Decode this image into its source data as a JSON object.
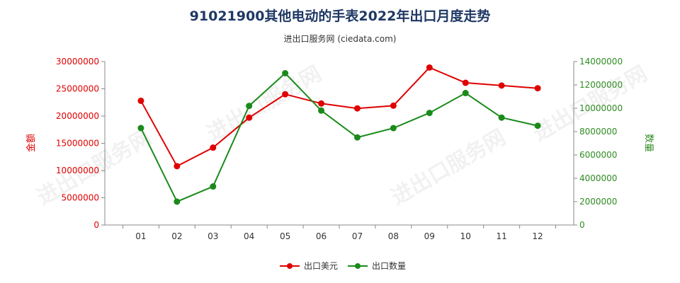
{
  "chart_data": {
    "type": "line",
    "title": "91021900其他电动的手表2022年出口月度走势",
    "subtitle": "进出口服务网 (ciedata.com)",
    "categories": [
      "01",
      "02",
      "03",
      "04",
      "05",
      "06",
      "07",
      "08",
      "09",
      "10",
      "11",
      "12"
    ],
    "y_left": {
      "label": "金额",
      "range": [
        0,
        30000000
      ],
      "ticks": [
        0,
        5000000,
        10000000,
        15000000,
        20000000,
        25000000,
        30000000
      ],
      "color": "#e00000"
    },
    "y_right": {
      "label": "数量",
      "range": [
        0,
        14000000
      ],
      "ticks": [
        0,
        2000000,
        4000000,
        6000000,
        8000000,
        10000000,
        12000000,
        14000000
      ],
      "color": "#2e8b22"
    },
    "series": [
      {
        "name": "出口美元",
        "axis": "left",
        "color": "#e00000",
        "values": [
          22800000,
          10800000,
          14200000,
          19700000,
          24000000,
          22300000,
          21400000,
          21900000,
          28900000,
          26100000,
          25600000,
          25100000
        ]
      },
      {
        "name": "出口数量",
        "axis": "right",
        "color": "#1a8a1a",
        "values": [
          8300000,
          2000000,
          3300000,
          10200000,
          13000000,
          9800000,
          7500000,
          8300000,
          9600000,
          11300000,
          9200000,
          8500000
        ]
      }
    ],
    "legend_position": "bottom-center",
    "grid": false
  },
  "watermark_text": "进出口服务网"
}
